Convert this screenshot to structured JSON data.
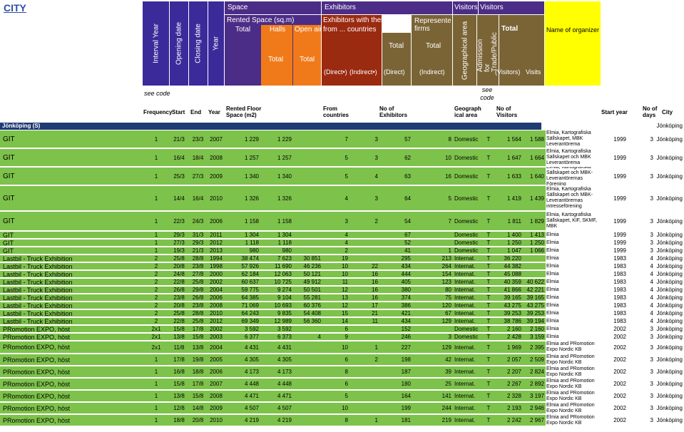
{
  "title": "CITY",
  "header": {
    "interval_year": "Interval Year",
    "opening_date": "Opening date",
    "closing_date": "Closing date",
    "year": "Year",
    "space": "Space",
    "rented_space": "Rented Space (sq.m)",
    "total": "Total",
    "halls": "Halls",
    "open_air": "Open air",
    "exhibitors": "Exhibitors",
    "exhibitors_own_stands": "Exhibitors with their own stands",
    "from_countries": "from ... countries",
    "represented_firms": "Represented firms",
    "direct_star": "(Direct•)",
    "indirect_star": "(Indirect•)",
    "direct": "(Direct)",
    "indirect": "(Indirect)",
    "visitors": "Visitors",
    "geographical_area": "Geographical area",
    "admission": "Admission for Trade/Public",
    "visitors_paren": "(Visitors)",
    "visits": "Visits",
    "name_of_organizer": "Name of organizer",
    "see_code": "see code"
  },
  "subheader": {
    "frequency": "Frequency",
    "start": "Start",
    "end": "End",
    "year": "Year",
    "rented_floor": "Rented Floor Space (m2)",
    "from_countries": "From countries",
    "no_exhibitors": "No of Exhibitors",
    "geographical_area": "Geograph ical area",
    "no_visitors": "No of Visitors",
    "start_year": "Start year",
    "no_days": "No of days",
    "city": "City"
  },
  "group": {
    "label": "Jönköping (S)",
    "city": "Jönköping"
  },
  "colors": {
    "purple": "#3b2a9a",
    "violet": "#4b2d87",
    "orange": "#f07a1a",
    "brown_red": "#9a2a10",
    "olive": "#7a6436",
    "yellow": "#ffff00",
    "green": "#7dc24a",
    "navy": "#1f3b73"
  },
  "rows": [
    {
      "name": "GIT",
      "freq": "1",
      "start": "21/3",
      "end": "23/3",
      "year": "2007",
      "total": "1 229",
      "halls": "1 229",
      "open": "",
      "countries": "7",
      "direct": "3",
      "exh": "57",
      "firms": "8",
      "geo": "Domestic",
      "adm": "T",
      "visitors": "1 564",
      "visits": "1 588",
      "org": "Elmia, Kartografiska Sällskapet, MBK Leverantörema",
      "sy": "1999",
      "days": "3",
      "city": "Jönköping",
      "h": 26
    },
    {
      "name": "GIT",
      "freq": "1",
      "start": "16/4",
      "end": "18/4",
      "year": "2008",
      "total": "1 257",
      "halls": "1 257",
      "open": "",
      "countries": "5",
      "direct": "3",
      "exh": "62",
      "firms": "10",
      "geo": "Domestic",
      "adm": "T",
      "visitors": "1 647",
      "visits": "1 664",
      "org": "Elmia, Kartografiska Sällskapet och MBK Leverantörema",
      "sy": "1999",
      "days": "3",
      "city": "Jönköping",
      "h": 26
    },
    {
      "name": "GIT",
      "freq": "1",
      "start": "25/3",
      "end": "27/3",
      "year": "2009",
      "total": "1 340",
      "halls": "1 340",
      "open": "",
      "countries": "5",
      "direct": "4",
      "exh": "63",
      "firms": "16",
      "geo": "Domestic",
      "adm": "T",
      "visitors": "1 633",
      "visits": "1 640",
      "org": "Elmia, Kartografiska Sällskapet och MBK-Leverantörernas Förening",
      "sy": "1999",
      "days": "3",
      "city": "Jönköping",
      "h": 26
    },
    {
      "name": "GIT",
      "freq": "1",
      "start": "14/4",
      "end": "16/4",
      "year": "2010",
      "total": "1 326",
      "halls": "1 326",
      "open": "",
      "countries": "4",
      "direct": "3",
      "exh": "64",
      "firms": "5",
      "geo": "Domestic",
      "adm": "T",
      "visitors": "1 419",
      "visits": "1 439",
      "org": "Elmia, Kartografiska Sällskapet och MBK-Leverantörernas intresseförening",
      "sy": "1999",
      "days": "3",
      "city": "Jönköping",
      "h": 36
    },
    {
      "name": "GIT",
      "freq": "1",
      "start": "22/3",
      "end": "24/3",
      "year": "2006",
      "total": "1 158",
      "halls": "1 158",
      "open": "",
      "countries": "3",
      "direct": "2",
      "exh": "54",
      "firms": "7",
      "geo": "Domestic",
      "adm": "T",
      "visitors": "1 811",
      "visits": "1 829",
      "org": "Elmia, Kartografiska Sällskapet, KIF, SKMF, MBK",
      "sy": "1999",
      "days": "3",
      "city": "Jönköping",
      "h": 28
    },
    {
      "name": "GIT",
      "freq": "1",
      "start": "29/3",
      "end": "31/3",
      "year": "2011",
      "total": "1 304",
      "halls": "1 304",
      "open": "",
      "countries": "4",
      "direct": "",
      "exh": "67",
      "firms": "",
      "geo": "Domestic",
      "adm": "T",
      "visitors": "1 400",
      "visits": "1 413",
      "org": "Elmia",
      "sy": "1999",
      "days": "3",
      "city": "Jönköping",
      "h": 11
    },
    {
      "name": "GIT",
      "freq": "1",
      "start": "27/3",
      "end": "29/3",
      "year": "2012",
      "total": "1 118",
      "halls": "1 118",
      "open": "",
      "countries": "4",
      "direct": "",
      "exh": "52",
      "firms": "",
      "geo": "Domestic",
      "adm": "T",
      "visitors": "1 250",
      "visits": "1 250",
      "org": "Elmia",
      "sy": "1999",
      "days": "3",
      "city": "Jönköping",
      "h": 11
    },
    {
      "name": "GIT",
      "freq": "1",
      "start": "19/3",
      "end": "21/3",
      "year": "2013",
      "total": "980",
      "halls": "980",
      "open": "",
      "countries": "2",
      "direct": "",
      "exh": "41",
      "firms": "1",
      "geo": "Domestic",
      "adm": "T",
      "visitors": "1 047",
      "visits": "1 066",
      "org": "Elmia",
      "sy": "1999",
      "days": "3",
      "city": "Jönköping",
      "h": 11
    },
    {
      "name": "Lastbil - Truck Exhibition",
      "freq": "2",
      "start": "25/8",
      "end": "28/8",
      "year": "1994",
      "total": "38 474",
      "halls": "7 623",
      "open": "30 851",
      "countries": "19",
      "direct": "",
      "exh": "295",
      "firms": "213",
      "geo": "Internat.",
      "adm": "T",
      "visitors": "36 220",
      "visits": "",
      "org": "Elmia",
      "sy": "1983",
      "days": "4",
      "city": "Jönköping",
      "h": 11
    },
    {
      "name": "Lastbil - Truck Exhibition",
      "freq": "2",
      "start": "20/8",
      "end": "23/8",
      "year": "1998",
      "total": "57 926",
      "halls": "11 690",
      "open": "46 236",
      "countries": "10",
      "direct": "22",
      "exh": "434",
      "firms": "264",
      "geo": "Internat.",
      "adm": "T",
      "visitors": "44 382",
      "visits": "",
      "org": "Elmia",
      "sy": "1983",
      "days": "4",
      "city": "Jönköping",
      "h": 11
    },
    {
      "name": "Lastbil - Truck Exhibition",
      "freq": "2",
      "start": "24/8",
      "end": "27/8",
      "year": "2000",
      "total": "62 184",
      "halls": "12 063",
      "open": "50 121",
      "countries": "10",
      "direct": "16",
      "exh": "444",
      "firms": "154",
      "geo": "Internat.",
      "adm": "T",
      "visitors": "45 088",
      "visits": "",
      "org": "Elmia",
      "sy": "1983",
      "days": "4",
      "city": "Jönköping",
      "h": 11
    },
    {
      "name": "Lastbil - Truck Exhibition",
      "freq": "2",
      "start": "22/8",
      "end": "25/8",
      "year": "2002",
      "total": "60 637",
      "halls": "10 725",
      "open": "49 912",
      "countries": "11",
      "direct": "16",
      "exh": "405",
      "firms": "123",
      "geo": "Internat.",
      "adm": "T",
      "visitors": "40 359",
      "visits": "40 622",
      "org": "Elmia",
      "sy": "1983",
      "days": "4",
      "city": "Jönköping",
      "h": 11
    },
    {
      "name": "Lastbil - Truck Exhibition",
      "freq": "2",
      "start": "26/8",
      "end": "29/8",
      "year": "2004",
      "total": "59 775",
      "halls": "9 274",
      "open": "50 501",
      "countries": "12",
      "direct": "16",
      "exh": "380",
      "firms": "80",
      "geo": "Internat.",
      "adm": "T",
      "visitors": "41 866",
      "visits": "42 221",
      "org": "Elmia",
      "sy": "1983",
      "days": "4",
      "city": "Jönköping",
      "h": 11
    },
    {
      "name": "Lastbil - Truck Exhibition",
      "freq": "2",
      "start": "23/8",
      "end": "26/8",
      "year": "2006",
      "total": "64 385",
      "halls": "9 104",
      "open": "55 281",
      "countries": "13",
      "direct": "16",
      "exh": "374",
      "firms": "75",
      "geo": "Internat.",
      "adm": "T",
      "visitors": "39 165",
      "visits": "39 165",
      "org": "Elmia",
      "sy": "1983",
      "days": "4",
      "city": "Jönköping",
      "h": 11
    },
    {
      "name": "Lastbil - Truck Exhibition",
      "freq": "2",
      "start": "20/8",
      "end": "23/8",
      "year": "2008",
      "total": "71 069",
      "halls": "10 693",
      "open": "60 376",
      "countries": "12",
      "direct": "17",
      "exh": "386",
      "firms": "120",
      "geo": "Internat.",
      "adm": "T",
      "visitors": "43 275",
      "visits": "43 275",
      "org": "Elmia",
      "sy": "1983",
      "days": "4",
      "city": "Jönköping",
      "h": 11
    },
    {
      "name": "Lastbil - Truck Exhibition",
      "freq": "2",
      "start": "25/8",
      "end": "28/8",
      "year": "2010",
      "total": "64 243",
      "halls": "9 835",
      "open": "54 408",
      "countries": "15",
      "direct": "21",
      "exh": "421",
      "firms": "67",
      "geo": "Internat.",
      "adm": "T",
      "visitors": "39 253",
      "visits": "39 253",
      "org": "Elmia",
      "sy": "1983",
      "days": "4",
      "city": "Jönköping",
      "h": 11
    },
    {
      "name": "Lastbil - Truck Exhibition",
      "freq": "2",
      "start": "22/8",
      "end": "25/8",
      "year": "2012",
      "total": "69 349",
      "halls": "12 989",
      "open": "56 360",
      "countries": "14",
      "direct": "11",
      "exh": "434",
      "firms": "129",
      "geo": "Internat.",
      "adm": "T",
      "visitors": "38 786",
      "visits": "39 194",
      "org": "Elmia",
      "sy": "1983",
      "days": "4",
      "city": "Jönköping",
      "h": 11
    },
    {
      "name": "PRomotion EXPO, höst",
      "freq": "2x1",
      "start": "15/8",
      "end": "17/8",
      "year": "2002",
      "total": "3 592",
      "halls": "3 592",
      "open": "",
      "countries": "6",
      "direct": "",
      "exh": "152",
      "firms": "",
      "geo": "Domestic",
      "adm": "T",
      "visitors": "2 160",
      "visits": "2 160",
      "org": "Elmia",
      "sy": "2002",
      "days": "3",
      "city": "Jönköping",
      "h": 11
    },
    {
      "name": "PRomotion EXPO, höst",
      "freq": "2x1",
      "start": "13/8",
      "end": "15/8",
      "year": "2003",
      "total": "6 377",
      "halls": "6 373",
      "open": "4",
      "countries": "9",
      "direct": "",
      "exh": "246",
      "firms": "3",
      "geo": "Domestic",
      "adm": "T",
      "visitors": "2 428",
      "visits": "3 159",
      "org": "Elmia",
      "sy": "2002",
      "days": "3",
      "city": "Jönköping",
      "h": 11
    },
    {
      "name": "PRomotion EXPO, höst",
      "freq": "2x1",
      "start": "11/8",
      "end": "13/8",
      "year": "2004",
      "total": "4 431",
      "halls": "4 431",
      "open": "",
      "countries": "10",
      "direct": "1",
      "exh": "227",
      "firms": "129",
      "geo": "Internat.",
      "adm": "T",
      "visitors": "1 969",
      "visits": "2 395",
      "org": "Elmia and PRomotion Expo Nordic KB",
      "sy": "2002",
      "days": "3",
      "city": "Jönköping",
      "h": 18
    },
    {
      "name": "PRomotion EXPO, höst",
      "freq": "1",
      "start": "17/8",
      "end": "19/8",
      "year": "2005",
      "total": "4 305",
      "halls": "4 305",
      "open": "",
      "countries": "6",
      "direct": "2",
      "exh": "198",
      "firms": "42",
      "geo": "Internat.",
      "adm": "T",
      "visitors": "2 057",
      "visits": "2 509",
      "org": "Elmia and PRomotion Expo Nordic KB",
      "sy": "2002",
      "days": "3",
      "city": "Jönköping",
      "h": 17
    },
    {
      "name": "PRomotion EXPO, höst",
      "freq": "1",
      "start": "16/8",
      "end": "18/8",
      "year": "2006",
      "total": "4 173",
      "halls": "4 173",
      "open": "",
      "countries": "8",
      "direct": "",
      "exh": "187",
      "firms": "39",
      "geo": "Internat.",
      "adm": "T",
      "visitors": "2 207",
      "visits": "2 824",
      "org": "Elmia and PRomotion Expo Nordic KB",
      "sy": "2002",
      "days": "3",
      "city": "Jönköping",
      "h": 17
    },
    {
      "name": "PRomotion EXPO, höst",
      "freq": "1",
      "start": "15/8",
      "end": "17/8",
      "year": "2007",
      "total": "4 448",
      "halls": "4 448",
      "open": "",
      "countries": "6",
      "direct": "",
      "exh": "180",
      "firms": "25",
      "geo": "Internat.",
      "adm": "T",
      "visitors": "2 267",
      "visits": "2 892",
      "org": "Elmia and PRomotion Expo Nordic KB",
      "sy": "2002",
      "days": "3",
      "city": "Jönköping",
      "h": 17
    },
    {
      "name": "PRomotion EXPO, höst",
      "freq": "1",
      "start": "13/8",
      "end": "15/8",
      "year": "2008",
      "total": "4 471",
      "halls": "4 471",
      "open": "",
      "countries": "5",
      "direct": "",
      "exh": "164",
      "firms": "141",
      "geo": "Internat.",
      "adm": "T",
      "visitors": "2 328",
      "visits": "3 197",
      "org": "Elmia and PRomotion Expo Nordic KB",
      "sy": "2002",
      "days": "3",
      "city": "Jönköping",
      "h": 17
    },
    {
      "name": "PRomotion EXPO, höst",
      "freq": "1",
      "start": "12/8",
      "end": "14/8",
      "year": "2009",
      "total": "4 507",
      "halls": "4 507",
      "open": "",
      "countries": "10",
      "direct": "",
      "exh": "199",
      "firms": "244",
      "geo": "Internat.",
      "adm": "T",
      "visitors": "2 193",
      "visits": "2 946",
      "org": "Elmia and PRomotion Expo Nordic KB",
      "sy": "2002",
      "days": "3",
      "city": "Jönköping",
      "h": 17
    },
    {
      "name": "PRomotion EXPO, höst",
      "freq": "1",
      "start": "18/8",
      "end": "20/8",
      "year": "2010",
      "total": "4 219",
      "halls": "4 219",
      "open": "",
      "countries": "8",
      "direct": "1",
      "exh": "181",
      "firms": "219",
      "geo": "Internat.",
      "adm": "T",
      "visitors": "2 242",
      "visits": "2 967",
      "org": "Elmia and PRomotion Expo Nordic KB",
      "sy": "2002",
      "days": "3",
      "city": "Jönköping",
      "h": 17
    }
  ]
}
